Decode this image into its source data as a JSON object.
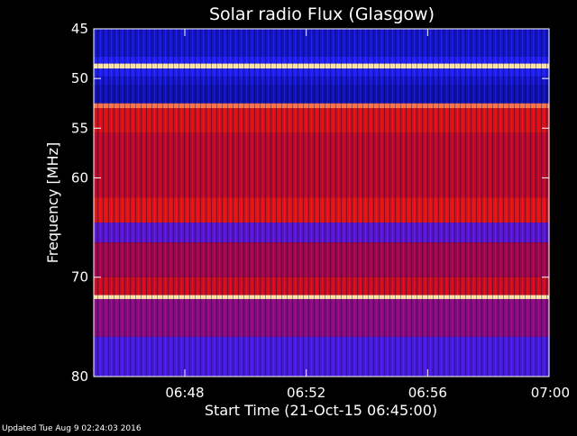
{
  "chart_data": {
    "type": "heatmap",
    "title": "Solar radio Flux (Glasgow)",
    "ylabel": "Frequency [MHz]",
    "xlabel": "Start Time (21-Oct-15 06:45:00)",
    "footer": "Updated Tue Aug  9 02:24:03 2016",
    "y_axis": {
      "range": [
        45,
        80
      ],
      "inverted": true,
      "ticks": [
        45,
        50,
        55,
        60,
        70,
        80
      ],
      "tick_labels": [
        "45",
        "50",
        "55",
        "60",
        "70",
        "80"
      ]
    },
    "x_axis": {
      "range": [
        "06:45",
        "07:00"
      ],
      "ticks": [
        "06:48",
        "06:52",
        "06:56",
        "07:00"
      ],
      "tick_labels": [
        "06:48",
        "06:52",
        "06:56",
        "07:00"
      ]
    },
    "colormap": [
      "#000050",
      "#1010c0",
      "#2020ff",
      "#6a10c8",
      "#b00030",
      "#e01010",
      "#ff4020",
      "#ffe6a0"
    ],
    "intensity_bands": [
      {
        "from": 45.0,
        "to": 47.8,
        "level": 0.18
      },
      {
        "from": 47.8,
        "to": 48.5,
        "level": 0.28
      },
      {
        "from": 48.5,
        "to": 49.0,
        "level": 1.0
      },
      {
        "from": 49.0,
        "to": 49.8,
        "level": 0.26
      },
      {
        "from": 49.8,
        "to": 50.7,
        "level": 0.18
      },
      {
        "from": 50.7,
        "to": 52.5,
        "level": 0.13
      },
      {
        "from": 52.5,
        "to": 53.0,
        "level": 0.9
      },
      {
        "from": 53.0,
        "to": 55.5,
        "level": 0.7
      },
      {
        "from": 55.5,
        "to": 62.0,
        "level": 0.62
      },
      {
        "from": 62.0,
        "to": 64.5,
        "level": 0.72
      },
      {
        "from": 64.5,
        "to": 66.5,
        "level": 0.4
      },
      {
        "from": 66.5,
        "to": 70.0,
        "level": 0.55
      },
      {
        "from": 70.0,
        "to": 71.8,
        "level": 0.66
      },
      {
        "from": 71.8,
        "to": 72.2,
        "level": 1.0
      },
      {
        "from": 72.2,
        "to": 76.0,
        "level": 0.5
      },
      {
        "from": 76.0,
        "to": 80.0,
        "level": 0.36
      }
    ],
    "grid": false,
    "legend": "none"
  }
}
